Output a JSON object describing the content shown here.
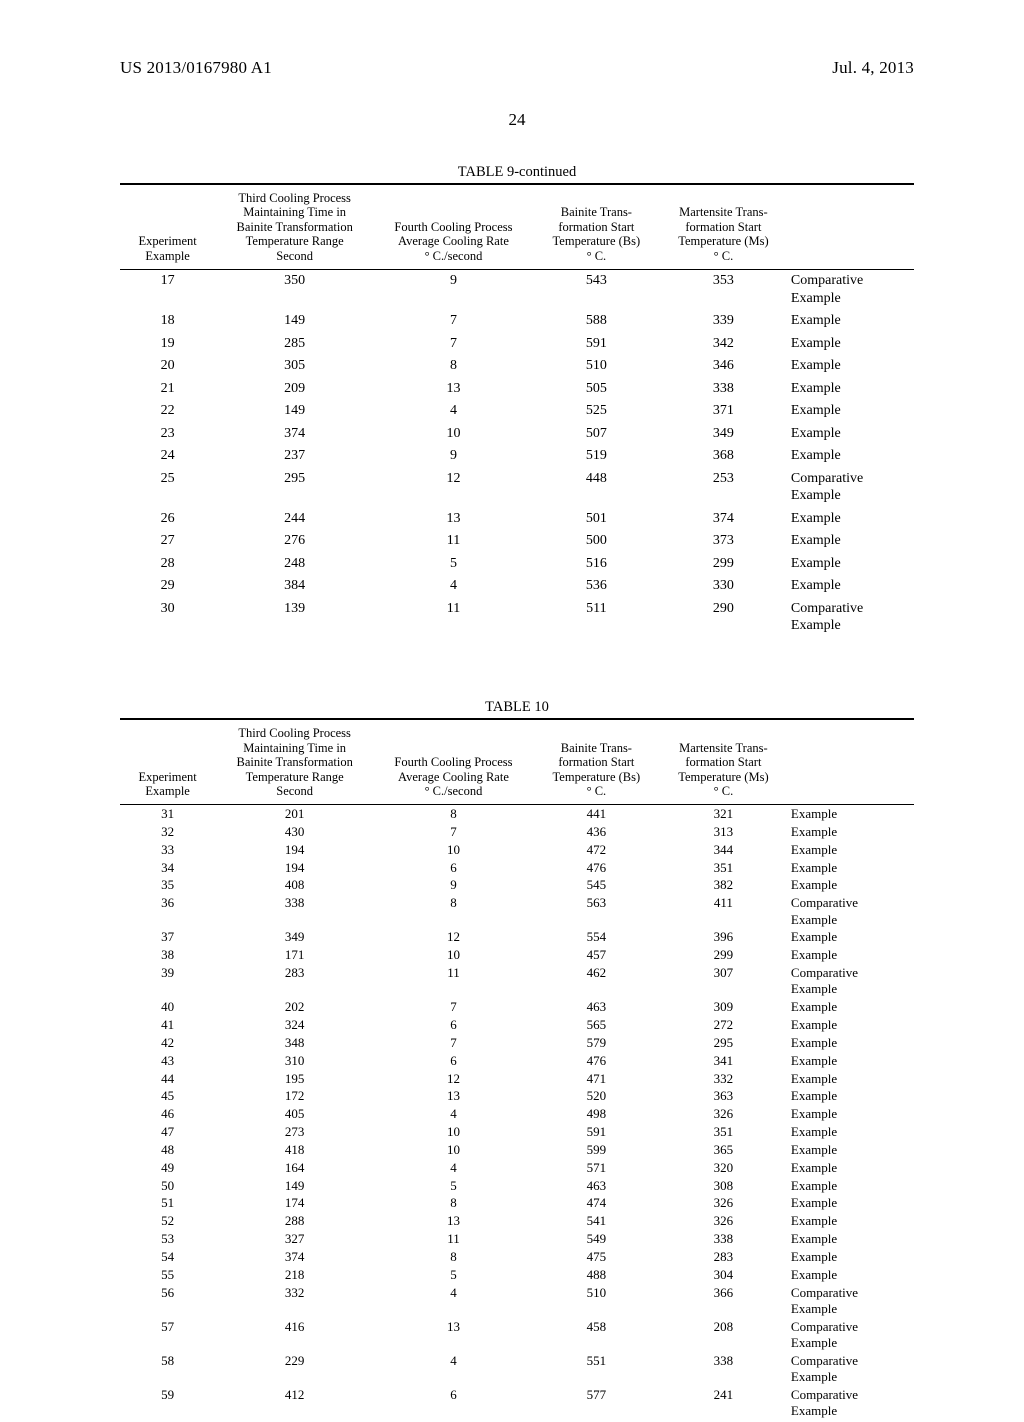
{
  "header": {
    "pub_number": "US 2013/0167980 A1",
    "pub_date": "Jul. 4, 2013",
    "page_number": "24"
  },
  "table9": {
    "caption": "TABLE 9-continued",
    "columns": {
      "c1_l1": "Experiment",
      "c1_l2": "Example",
      "c2_l1": "Third Cooling Process",
      "c2_l2": "Maintaining Time in",
      "c2_l3": "Bainite Transformation",
      "c2_l4": "Temperature Range",
      "c2_l5": "Second",
      "c3_l1": "Fourth Cooling Process",
      "c3_l2": "Average Cooling Rate",
      "c3_l3": "° C./second",
      "c4_l1": "Bainite Trans-",
      "c4_l2": "formation Start",
      "c4_l3": "Temperature (Bs)",
      "c4_l4": "° C.",
      "c5_l1": "Martensite Trans-",
      "c5_l2": "formation Start",
      "c5_l3": "Temperature (Ms)",
      "c5_l4": "° C."
    },
    "rows": [
      {
        "n": "17",
        "a": "350",
        "b": "9",
        "c": "543",
        "d": "353",
        "note": "Comparative Example"
      },
      {
        "n": "18",
        "a": "149",
        "b": "7",
        "c": "588",
        "d": "339",
        "note": "Example"
      },
      {
        "n": "19",
        "a": "285",
        "b": "7",
        "c": "591",
        "d": "342",
        "note": "Example"
      },
      {
        "n": "20",
        "a": "305",
        "b": "8",
        "c": "510",
        "d": "346",
        "note": "Example"
      },
      {
        "n": "21",
        "a": "209",
        "b": "13",
        "c": "505",
        "d": "338",
        "note": "Example"
      },
      {
        "n": "22",
        "a": "149",
        "b": "4",
        "c": "525",
        "d": "371",
        "note": "Example"
      },
      {
        "n": "23",
        "a": "374",
        "b": "10",
        "c": "507",
        "d": "349",
        "note": "Example"
      },
      {
        "n": "24",
        "a": "237",
        "b": "9",
        "c": "519",
        "d": "368",
        "note": "Example"
      },
      {
        "n": "25",
        "a": "295",
        "b": "12",
        "c": "448",
        "d": "253",
        "note": "Comparative Example"
      },
      {
        "n": "26",
        "a": "244",
        "b": "13",
        "c": "501",
        "d": "374",
        "note": "Example"
      },
      {
        "n": "27",
        "a": "276",
        "b": "11",
        "c": "500",
        "d": "373",
        "note": "Example"
      },
      {
        "n": "28",
        "a": "248",
        "b": "5",
        "c": "516",
        "d": "299",
        "note": "Example"
      },
      {
        "n": "29",
        "a": "384",
        "b": "4",
        "c": "536",
        "d": "330",
        "note": "Example"
      },
      {
        "n": "30",
        "a": "139",
        "b": "11",
        "c": "511",
        "d": "290",
        "note": "Comparative Example"
      }
    ]
  },
  "table10": {
    "caption": "TABLE 10",
    "columns": {
      "c1_l1": "Experiment",
      "c1_l2": "Example",
      "c2_l1": "Third Cooling Process",
      "c2_l2": "Maintaining Time in",
      "c2_l3": "Bainite Transformation",
      "c2_l4": "Temperature Range",
      "c2_l5": "Second",
      "c3_l1": "Fourth Cooling Process",
      "c3_l2": "Average Cooling Rate",
      "c3_l3": "° C./second",
      "c4_l1": "Bainite Trans-",
      "c4_l2": "formation Start",
      "c4_l3": "Temperature (Bs)",
      "c4_l4": "° C.",
      "c5_l1": "Martensite Trans-",
      "c5_l2": "formation Start",
      "c5_l3": "Temperature (Ms)",
      "c5_l4": "° C."
    },
    "rows": [
      {
        "n": "31",
        "a": "201",
        "b": "8",
        "c": "441",
        "d": "321",
        "note": "Example"
      },
      {
        "n": "32",
        "a": "430",
        "b": "7",
        "c": "436",
        "d": "313",
        "note": "Example"
      },
      {
        "n": "33",
        "a": "194",
        "b": "10",
        "c": "472",
        "d": "344",
        "note": "Example"
      },
      {
        "n": "34",
        "a": "194",
        "b": "6",
        "c": "476",
        "d": "351",
        "note": "Example"
      },
      {
        "n": "35",
        "a": "408",
        "b": "9",
        "c": "545",
        "d": "382",
        "note": "Example"
      },
      {
        "n": "36",
        "a": "338",
        "b": "8",
        "c": "563",
        "d": "411",
        "note": "Comparative Example"
      },
      {
        "n": "37",
        "a": "349",
        "b": "12",
        "c": "554",
        "d": "396",
        "note": "Example"
      },
      {
        "n": "38",
        "a": "171",
        "b": "10",
        "c": "457",
        "d": "299",
        "note": "Example"
      },
      {
        "n": "39",
        "a": "283",
        "b": "11",
        "c": "462",
        "d": "307",
        "note": "Comparative Example"
      },
      {
        "n": "40",
        "a": "202",
        "b": "7",
        "c": "463",
        "d": "309",
        "note": "Example"
      },
      {
        "n": "41",
        "a": "324",
        "b": "6",
        "c": "565",
        "d": "272",
        "note": "Example"
      },
      {
        "n": "42",
        "a": "348",
        "b": "7",
        "c": "579",
        "d": "295",
        "note": "Example"
      },
      {
        "n": "43",
        "a": "310",
        "b": "6",
        "c": "476",
        "d": "341",
        "note": "Example"
      },
      {
        "n": "44",
        "a": "195",
        "b": "12",
        "c": "471",
        "d": "332",
        "note": "Example"
      },
      {
        "n": "45",
        "a": "172",
        "b": "13",
        "c": "520",
        "d": "363",
        "note": "Example"
      },
      {
        "n": "46",
        "a": "405",
        "b": "4",
        "c": "498",
        "d": "326",
        "note": "Example"
      },
      {
        "n": "47",
        "a": "273",
        "b": "10",
        "c": "591",
        "d": "351",
        "note": "Example"
      },
      {
        "n": "48",
        "a": "418",
        "b": "10",
        "c": "599",
        "d": "365",
        "note": "Example"
      },
      {
        "n": "49",
        "a": "164",
        "b": "4",
        "c": "571",
        "d": "320",
        "note": "Example"
      },
      {
        "n": "50",
        "a": "149",
        "b": "5",
        "c": "463",
        "d": "308",
        "note": "Example"
      },
      {
        "n": "51",
        "a": "174",
        "b": "8",
        "c": "474",
        "d": "326",
        "note": "Example"
      },
      {
        "n": "52",
        "a": "288",
        "b": "13",
        "c": "541",
        "d": "326",
        "note": "Example"
      },
      {
        "n": "53",
        "a": "327",
        "b": "11",
        "c": "549",
        "d": "338",
        "note": "Example"
      },
      {
        "n": "54",
        "a": "374",
        "b": "8",
        "c": "475",
        "d": "283",
        "note": "Example"
      },
      {
        "n": "55",
        "a": "218",
        "b": "5",
        "c": "488",
        "d": "304",
        "note": "Example"
      },
      {
        "n": "56",
        "a": "332",
        "b": "4",
        "c": "510",
        "d": "366",
        "note": "Comparative Example"
      },
      {
        "n": "57",
        "a": "416",
        "b": "13",
        "c": "458",
        "d": "208",
        "note": "Comparative Example"
      },
      {
        "n": "58",
        "a": "229",
        "b": "4",
        "c": "551",
        "d": "338",
        "note": "Comparative Example"
      },
      {
        "n": "59",
        "a": "412",
        "b": "6",
        "c": "577",
        "d": "241",
        "note": "Comparative Example"
      }
    ]
  }
}
